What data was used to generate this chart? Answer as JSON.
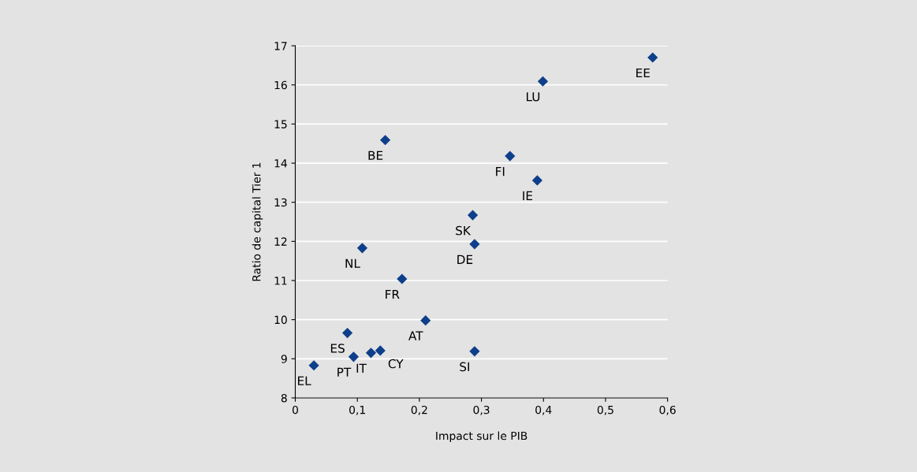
{
  "chart_data": {
    "type": "scatter",
    "xlabel": "Impact sur le PIB",
    "ylabel": "Ratio de capital Tier 1",
    "x": [
      0.576,
      0.399,
      0.145,
      0.346,
      0.39,
      0.286,
      0.289,
      0.108,
      0.172,
      0.21,
      0.084,
      0.137,
      0.122,
      0.289,
      0.094,
      0.03
    ],
    "values": [
      16.7,
      16.09,
      14.59,
      14.18,
      13.56,
      12.67,
      11.93,
      11.83,
      11.04,
      9.98,
      9.66,
      9.21,
      9.15,
      9.19,
      9.05,
      8.83
    ],
    "color": "#0d3f8a",
    "marker": "diamond",
    "grid": "y",
    "xlim": [
      0,
      0.6
    ],
    "xticks": [
      0,
      {
        "value": 0.1,
        "label": "0,1"
      },
      {
        "value": 0.2,
        "label": "0,2"
      },
      {
        "value": 0.3,
        "label": "0,3"
      },
      {
        "value": 0.4,
        "label": "0,4"
      },
      {
        "value": 0.5,
        "label": "0,5"
      },
      {
        "value": 0.6,
        "label": "0,6"
      }
    ],
    "ylim": [
      8,
      17
    ],
    "yticks": [
      8,
      9,
      10,
      11,
      12,
      13,
      14,
      15,
      16,
      17
    ],
    "annotations": [
      {
        "text": "EE",
        "x": 0.576,
        "y": 16.7
      },
      {
        "text": "LU",
        "x": 0.399,
        "y": 16.09
      },
      {
        "text": "BE",
        "x": 0.145,
        "y": 14.59
      },
      {
        "text": "FI",
        "x": 0.346,
        "y": 14.18
      },
      {
        "text": "IE",
        "x": 0.39,
        "y": 13.56
      },
      {
        "text": "SK",
        "x": 0.286,
        "y": 12.67
      },
      {
        "text": "DE",
        "x": 0.289,
        "y": 11.93
      },
      {
        "text": "NL",
        "x": 0.108,
        "y": 11.83
      },
      {
        "text": "FR",
        "x": 0.172,
        "y": 11.04
      },
      {
        "text": "AT",
        "x": 0.21,
        "y": 9.98
      },
      {
        "text": "ES",
        "x": 0.084,
        "y": 9.66
      },
      {
        "text": "CY",
        "x": 0.137,
        "y": 9.21
      },
      {
        "text": "IT",
        "x": 0.122,
        "y": 9.15
      },
      {
        "text": "SI",
        "x": 0.289,
        "y": 9.19
      },
      {
        "text": "PT",
        "x": 0.094,
        "y": 9.05
      },
      {
        "text": "EL",
        "x": 0.03,
        "y": 8.83
      }
    ]
  }
}
